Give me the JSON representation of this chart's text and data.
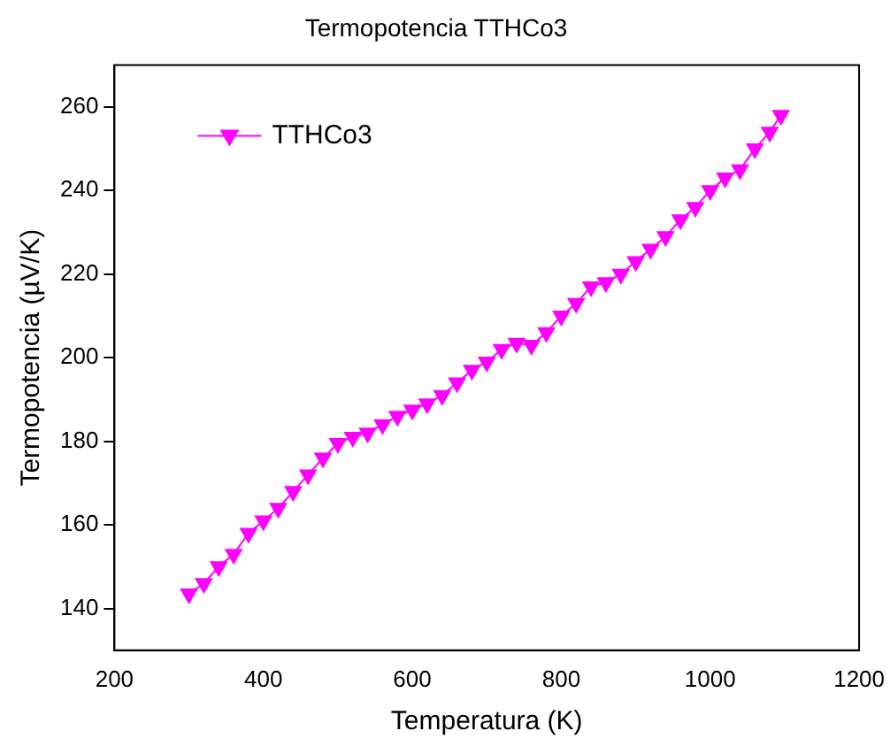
{
  "chart_data": {
    "type": "line",
    "title": "Termopotencia TTHCo3",
    "xlabel": "Temperatura (K)",
    "ylabel": "Termopotencia (µV/K)",
    "x": [
      300,
      320,
      340,
      360,
      380,
      400,
      420,
      440,
      460,
      480,
      500,
      520,
      540,
      560,
      580,
      600,
      620,
      640,
      660,
      680,
      700,
      720,
      740,
      760,
      780,
      800,
      820,
      840,
      860,
      880,
      900,
      920,
      940,
      960,
      980,
      1000,
      1020,
      1040,
      1060,
      1080,
      1095
    ],
    "series": [
      {
        "name": "TTHCo3",
        "color": "#ff00ff",
        "values": [
          143.5,
          146,
          150,
          153,
          158,
          161,
          164,
          168,
          172,
          176,
          179.5,
          181,
          182,
          184,
          186,
          187.5,
          189,
          191,
          194,
          197,
          199,
          202,
          203.5,
          203,
          206,
          210,
          213,
          217,
          218,
          220,
          223,
          226,
          229,
          233,
          236,
          240,
          243,
          245,
          250,
          254,
          258
        ]
      }
    ],
    "xlim": [
      200,
      1200
    ],
    "xticks": [
      200,
      400,
      600,
      800,
      1000,
      1200
    ],
    "ylim": [
      130,
      270
    ],
    "yticks": [
      140,
      160,
      180,
      200,
      220,
      240,
      260
    ],
    "marker": "triangle",
    "legend": "top left",
    "grid": false
  }
}
